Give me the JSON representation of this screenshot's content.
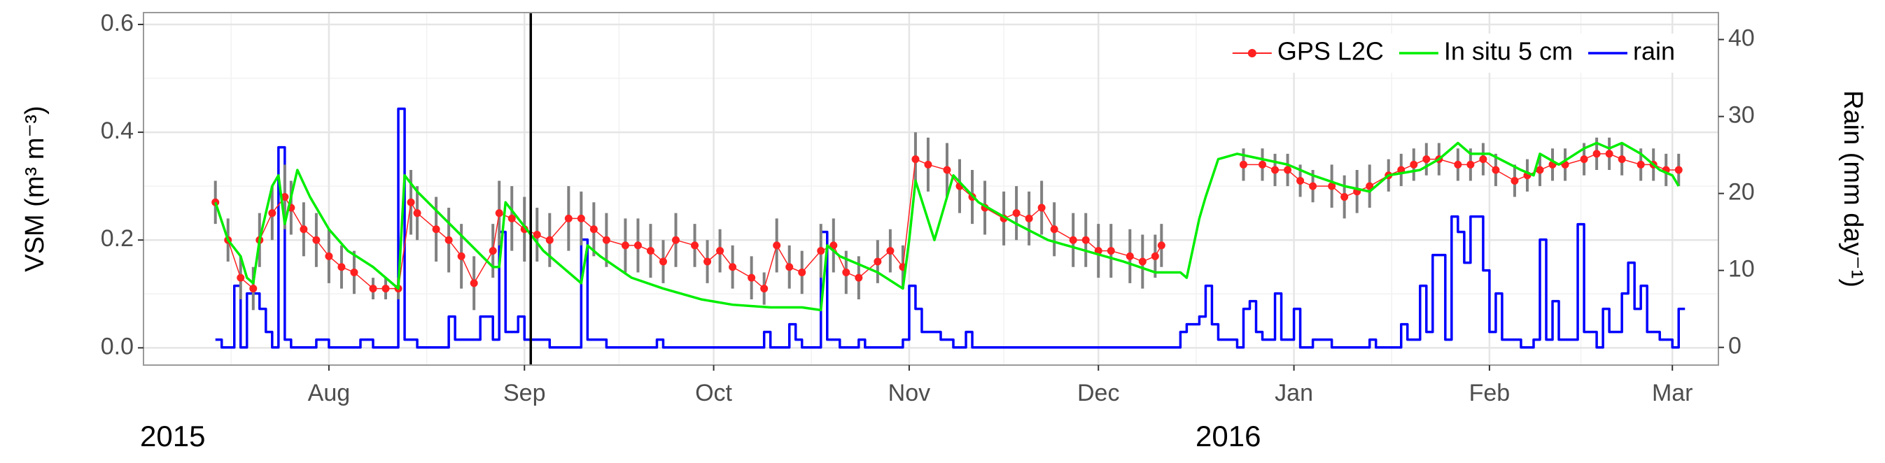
{
  "chart_data": {
    "type": "line",
    "y_label": "VSM (m³ m⁻³)",
    "y2_label": "Rain (mm day⁻¹)",
    "xlim": [
      -11.4,
      238.3
    ],
    "xticks": [
      {
        "value": 18,
        "label": "Aug"
      },
      {
        "value": 49,
        "label": "Sep"
      },
      {
        "value": 79,
        "label": "Oct"
      },
      {
        "value": 110,
        "label": "Nov"
      },
      {
        "value": 140,
        "label": "Dec"
      },
      {
        "value": 171,
        "label": "Jan"
      },
      {
        "value": 202,
        "label": "Feb"
      },
      {
        "value": 231,
        "label": "Mar"
      }
    ],
    "year_labels": [
      "2015",
      "2016"
    ],
    "ylim": [
      -0.032,
      0.622
    ],
    "yticks": [
      {
        "value": 0,
        "label": "0.0"
      },
      0.2,
      0.4,
      0.6
    ],
    "y2lim": [
      -2.3,
      43.5
    ],
    "y2ticks": [
      0,
      10,
      20,
      30,
      40
    ],
    "grid": true,
    "vline_x": 50,
    "legend": "top-right",
    "series": [
      {
        "name": "GPS L2C",
        "color": "#ff2020",
        "error_color": "#808080",
        "x": [
          0,
          2,
          4,
          6,
          7,
          9,
          11,
          12,
          14,
          16,
          18,
          20,
          22,
          25,
          27,
          29,
          31,
          32,
          35,
          37,
          39,
          41,
          44,
          45,
          47,
          49,
          51,
          53,
          56,
          58,
          60,
          62,
          65,
          67,
          69,
          71,
          73,
          76,
          78,
          80,
          82,
          85,
          87,
          89,
          91,
          93,
          96,
          98,
          100,
          102,
          105,
          107,
          109,
          111,
          113,
          116,
          118,
          120,
          122,
          125,
          127,
          129,
          131,
          133,
          136,
          138,
          140,
          142,
          145,
          147,
          149,
          150,
          160,
          163,
          166,
          168,
          170,
          172,
          174,
          177,
          179,
          181,
          183,
          186,
          188,
          190,
          192,
          194,
          197,
          199,
          201,
          203,
          206,
          208,
          210,
          212,
          214,
          217,
          219,
          221,
          223,
          226,
          228,
          230,
          232
        ],
        "values": [
          0.27,
          0.2,
          0.13,
          0.11,
          0.2,
          0.25,
          0.28,
          0.26,
          0.22,
          0.2,
          0.17,
          0.15,
          0.14,
          0.11,
          0.11,
          0.11,
          0.27,
          0.25,
          0.22,
          0.2,
          0.17,
          0.12,
          0.18,
          0.25,
          0.24,
          0.22,
          0.21,
          0.2,
          0.24,
          0.24,
          0.22,
          0.2,
          0.19,
          0.19,
          0.18,
          0.16,
          0.2,
          0.19,
          0.16,
          0.18,
          0.15,
          0.13,
          0.11,
          0.19,
          0.15,
          0.14,
          0.18,
          0.19,
          0.14,
          0.13,
          0.16,
          0.18,
          0.15,
          0.35,
          0.34,
          0.33,
          0.3,
          0.28,
          0.26,
          0.24,
          0.25,
          0.24,
          0.26,
          0.22,
          0.2,
          0.2,
          0.18,
          0.18,
          0.17,
          0.16,
          0.17,
          0.19,
          null,
          0.34,
          0.34,
          0.33,
          0.33,
          0.31,
          0.3,
          0.3,
          0.28,
          0.29,
          0.3,
          0.32,
          0.33,
          0.34,
          0.35,
          0.35,
          0.34,
          0.34,
          0.35,
          0.33,
          0.31,
          0.32,
          0.33,
          0.34,
          0.34,
          0.35,
          0.36,
          0.36,
          0.35,
          0.34,
          0.34,
          0.33,
          0.33
        ],
        "errors": [
          0.04,
          0.04,
          0.04,
          0.04,
          0.05,
          0.05,
          0.06,
          0.05,
          0.05,
          0.05,
          0.05,
          0.04,
          0.04,
          0.02,
          0.02,
          0.02,
          0.06,
          0.05,
          0.06,
          0.06,
          0.06,
          0.05,
          0.05,
          0.06,
          0.06,
          0.06,
          0.05,
          0.05,
          0.06,
          0.05,
          0.05,
          0.05,
          0.05,
          0.05,
          0.05,
          0.04,
          0.05,
          0.04,
          0.04,
          0.04,
          0.04,
          0.04,
          0.03,
          0.05,
          0.04,
          0.04,
          0.05,
          0.05,
          0.04,
          0.04,
          0.04,
          0.04,
          0.04,
          0.05,
          0.05,
          0.05,
          0.05,
          0.05,
          0.05,
          0.05,
          0.05,
          0.05,
          0.05,
          0.05,
          0.05,
          0.05,
          0.05,
          0.05,
          0.05,
          0.05,
          0.04,
          0.04,
          null,
          0.03,
          0.03,
          0.03,
          0.03,
          0.03,
          0.03,
          0.04,
          0.04,
          0.04,
          0.04,
          0.03,
          0.03,
          0.03,
          0.03,
          0.03,
          0.03,
          0.03,
          0.03,
          0.03,
          0.03,
          0.03,
          0.03,
          0.03,
          0.03,
          0.03,
          0.03,
          0.03,
          0.03,
          0.03,
          0.03,
          0.03,
          0.03
        ]
      },
      {
        "name": "In situ 5 cm",
        "color": "#00ee00",
        "x": [
          0,
          2,
          4,
          5,
          6,
          7,
          9,
          10,
          11,
          13,
          15,
          18,
          21,
          25,
          28,
          29,
          30,
          32,
          38,
          44,
          45,
          46,
          52,
          58,
          59,
          61,
          66,
          71,
          77,
          82,
          88,
          93,
          96,
          97,
          99,
          105,
          109,
          110,
          111,
          114,
          117,
          121,
          127,
          132,
          138,
          144,
          149,
          153,
          154,
          156,
          157,
          159,
          162,
          166,
          170,
          174,
          179,
          183,
          186,
          191,
          194,
          197,
          199,
          202,
          207,
          209,
          210,
          213,
          217,
          219,
          221,
          223,
          226,
          229,
          231,
          232
        ],
        "values": [
          0.27,
          0.2,
          0.17,
          0.13,
          0.12,
          0.2,
          0.3,
          0.32,
          0.23,
          0.33,
          0.28,
          0.22,
          0.18,
          0.15,
          0.12,
          0.11,
          0.32,
          0.29,
          0.22,
          0.15,
          0.15,
          0.27,
          0.18,
          0.12,
          0.19,
          0.17,
          0.13,
          0.11,
          0.09,
          0.08,
          0.075,
          0.075,
          0.07,
          0.19,
          0.17,
          0.14,
          0.11,
          0.2,
          0.31,
          0.2,
          0.32,
          0.27,
          0.23,
          0.2,
          0.18,
          0.16,
          0.14,
          0.14,
          0.13,
          0.24,
          0.28,
          0.35,
          0.36,
          0.35,
          0.34,
          0.32,
          0.3,
          0.29,
          0.32,
          0.33,
          0.35,
          0.38,
          0.36,
          0.36,
          0.33,
          0.32,
          0.36,
          0.34,
          0.37,
          0.38,
          0.37,
          0.38,
          0.36,
          0.33,
          0.32,
          0.3
        ]
      },
      {
        "name": "rain",
        "color": "#0000ff",
        "axis": "y2",
        "step": true,
        "x": [
          0,
          1,
          3,
          4,
          5,
          7,
          8,
          9,
          10,
          11,
          12,
          16,
          18,
          23,
          25,
          29,
          30,
          32,
          37,
          38,
          42,
          44,
          45,
          46,
          48,
          49,
          53,
          58,
          59,
          62,
          70,
          71,
          87,
          88,
          91,
          92,
          93,
          96,
          97,
          99,
          102,
          103,
          109,
          110,
          111,
          112,
          115,
          117,
          119,
          120,
          153,
          154,
          156,
          157,
          158,
          159,
          162,
          163,
          164,
          165,
          166,
          168,
          169,
          171,
          172,
          174,
          177,
          183,
          184,
          188,
          189,
          191,
          192,
          193,
          195,
          196,
          197,
          198,
          199,
          201,
          202,
          203,
          204,
          207,
          209,
          210,
          211,
          212,
          213,
          216,
          217,
          219,
          220,
          221,
          223,
          224,
          225,
          226,
          227,
          229,
          231,
          232,
          233
        ],
        "values": [
          1,
          0,
          8,
          0,
          7,
          5,
          2,
          0,
          26,
          1,
          0,
          1,
          0,
          1,
          0,
          31,
          1,
          0,
          4,
          1,
          4,
          1,
          15,
          2,
          4,
          1,
          0,
          14,
          1,
          0,
          1,
          0,
          2,
          0,
          3,
          1,
          0,
          15,
          1,
          0,
          1,
          0,
          1,
          8,
          5,
          2,
          1,
          0,
          2,
          0,
          2,
          3,
          4,
          8,
          3,
          1,
          0,
          5,
          6,
          2,
          1,
          7,
          1,
          5,
          0,
          1,
          0,
          1,
          0,
          3,
          1,
          8,
          2,
          12,
          1,
          17,
          15,
          11,
          17,
          10,
          2,
          7,
          1,
          0,
          1,
          14,
          1,
          6,
          1,
          16,
          2,
          0,
          5,
          2,
          7,
          11,
          5,
          8,
          2,
          1,
          0,
          5,
          5
        ]
      }
    ]
  }
}
